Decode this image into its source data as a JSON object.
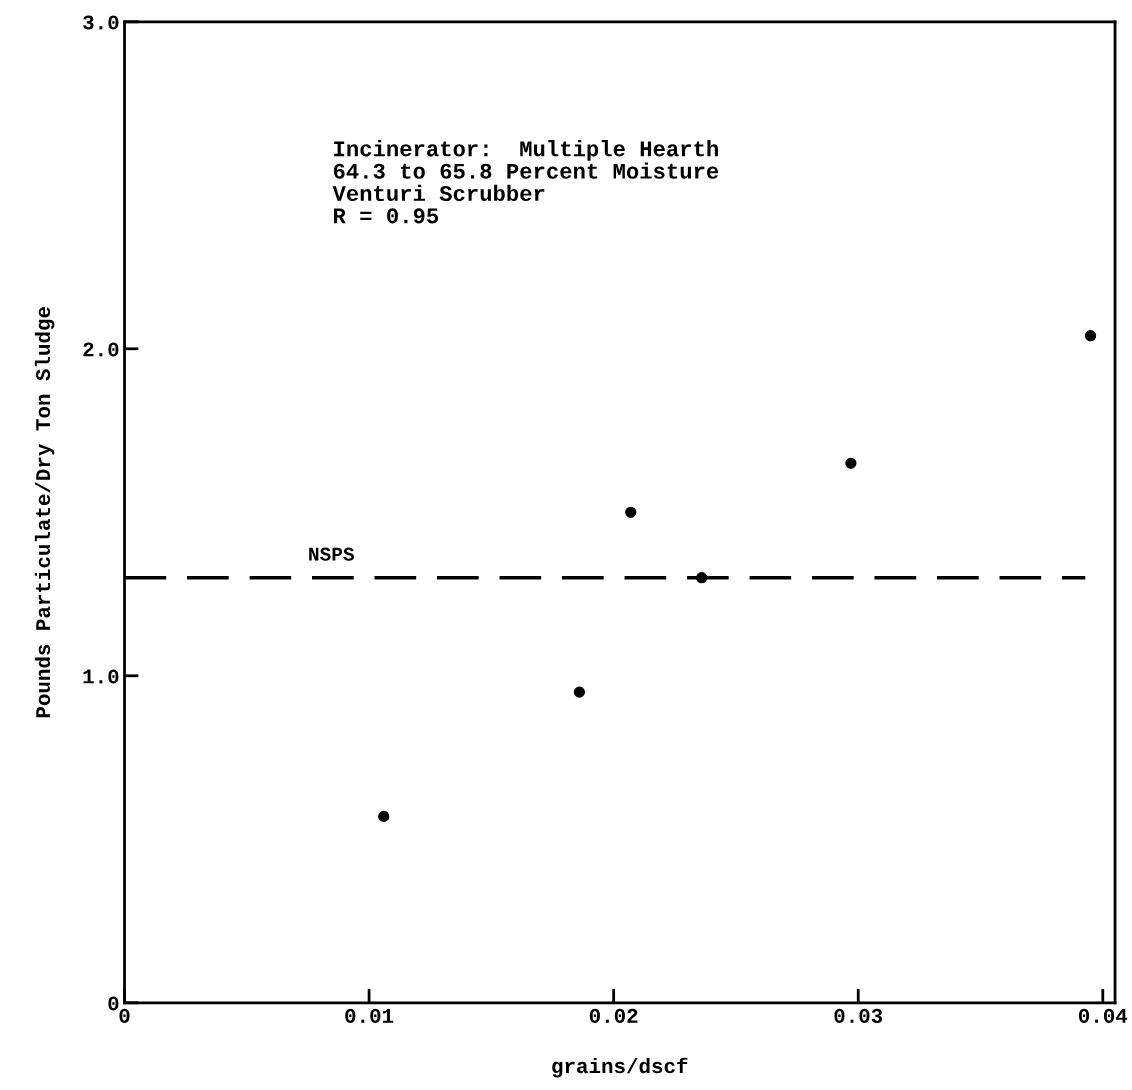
{
  "chart_data": {
    "type": "scatter",
    "xlabel": "grains/dscf",
    "ylabel": "Pounds Particulate/Dry Ton Sludge",
    "x": [
      0.0106,
      0.0186,
      0.0207,
      0.0236,
      0.0297,
      0.0395
    ],
    "values": [
      0.57,
      0.95,
      1.5,
      1.3,
      1.65,
      2.04
    ],
    "color": "#000000",
    "marker": "circle",
    "xlim": [
      0,
      0.0405
    ],
    "ylim": [
      0,
      3.0
    ],
    "xticks": [
      0,
      0.01,
      0.02,
      0.03,
      0.04
    ],
    "yticks": [
      0,
      {
        "value": 1,
        "label": "1.0"
      },
      {
        "value": 2,
        "label": "2.0"
      },
      {
        "value": 3,
        "label": "3.0"
      }
    ],
    "ref_lines": [
      {
        "axis": "y",
        "value": 1.3,
        "label": "NSPS",
        "color": "#000000",
        "line_style": "dashed"
      }
    ],
    "annotations": [
      "Incinerator:  Multiple Hearth\n64.3 to 65.8 Percent Moisture\nVenturi Scrubber\nR = 0.95"
    ],
    "grid": false
  }
}
